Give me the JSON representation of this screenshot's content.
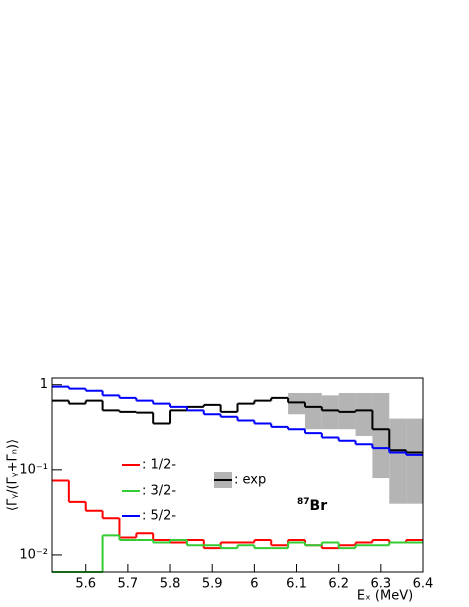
{
  "chart_data": {
    "type": "histogram",
    "ylabel": "⟨Γᵧ/(Γᵧ+Γₙ)⟩",
    "xlabel": "Eₓ (MeV)",
    "annotation": {
      "superscript": "87",
      "text": "Br"
    },
    "log_y": true,
    "xlim": [
      5.52,
      6.4
    ],
    "ylim": [
      0.0063,
      1.2
    ],
    "xticks": [
      5.6,
      5.7,
      5.8,
      5.9,
      6,
      6.1,
      6.2,
      6.3,
      6.4
    ],
    "yticks": [
      {
        "value": 0.01,
        "label": "10⁻²"
      },
      {
        "value": 0.1,
        "label": "10⁻¹"
      },
      1
    ],
    "bins": [
      5.52,
      5.56,
      5.6,
      5.64,
      5.68,
      5.72,
      5.76,
      5.8,
      5.84,
      5.88,
      5.92,
      5.96,
      6.0,
      6.04,
      6.08,
      6.12,
      6.16,
      6.2,
      6.24,
      6.28,
      6.32,
      6.36,
      6.4
    ],
    "series": [
      {
        "name": ": exp",
        "color": "#000000",
        "band_color": "#b4b4b4",
        "values": [
          0.65,
          0.6,
          0.65,
          0.5,
          0.48,
          0.47,
          0.35,
          0.5,
          0.55,
          0.58,
          0.48,
          0.6,
          0.65,
          0.7,
          0.62,
          0.55,
          0.5,
          0.48,
          0.5,
          0.3,
          0.17,
          0.16
        ],
        "band_low": [
          null,
          null,
          null,
          null,
          null,
          null,
          null,
          null,
          null,
          null,
          null,
          null,
          null,
          null,
          0.45,
          0.3,
          0.3,
          0.3,
          0.25,
          0.08,
          0.04,
          0.04
        ],
        "band_high": [
          null,
          null,
          null,
          null,
          null,
          null,
          null,
          null,
          null,
          null,
          null,
          null,
          null,
          null,
          0.8,
          0.8,
          0.75,
          0.8,
          0.8,
          0.8,
          0.4,
          0.4
        ]
      },
      {
        "name": ": 1/2-",
        "color": "#ff0000",
        "values": [
          0.075,
          0.042,
          0.033,
          0.027,
          0.016,
          0.018,
          0.015,
          0.014,
          0.015,
          0.012,
          0.014,
          0.014,
          0.015,
          0.013,
          0.015,
          0.013,
          0.012,
          0.013,
          0.014,
          0.015,
          0.014,
          0.015
        ]
      },
      {
        "name": ": 3/2-",
        "color": "#33cc33",
        "values": [
          0,
          0,
          0,
          0.017,
          0.015,
          0.015,
          0.014,
          0.015,
          0.013,
          0.013,
          0.012,
          0.013,
          0.012,
          0.012,
          0.014,
          0.013,
          0.014,
          0.012,
          0.013,
          0.013,
          0.014,
          0.014
        ]
      },
      {
        "name": ": 5/2-",
        "color": "#0000ff",
        "values": [
          0.95,
          0.9,
          0.85,
          0.75,
          0.7,
          0.65,
          0.6,
          0.55,
          0.5,
          0.45,
          0.42,
          0.38,
          0.35,
          0.32,
          0.3,
          0.27,
          0.24,
          0.22,
          0.2,
          0.18,
          0.16,
          0.15
        ]
      }
    ]
  }
}
